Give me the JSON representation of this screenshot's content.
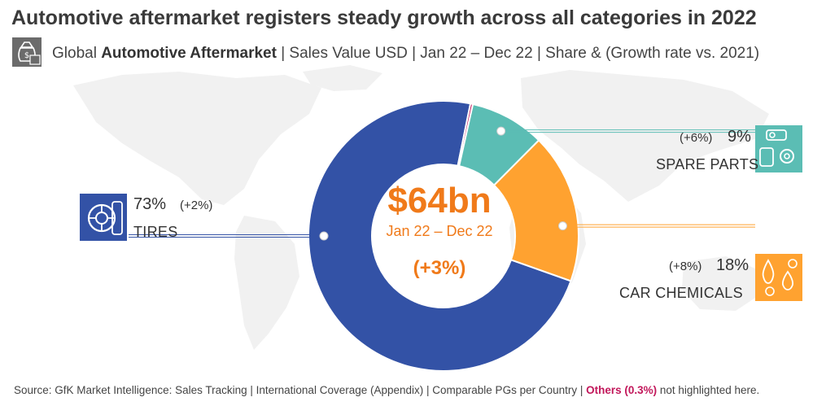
{
  "title": "Automotive aftermarket registers steady growth across all categories in 2022",
  "subtitle": {
    "prefix": "Global ",
    "bold": "Automotive Aftermarket",
    "suffix": " | Sales Value USD | Jan 22 – Dec 22 | Share & (Growth rate vs. 2021)"
  },
  "center": {
    "value": "$64bn",
    "period": "Jan 22 – Dec 22",
    "growth": "(+3%)"
  },
  "source": {
    "text": "Source: GfK Market Intelligence: Sales Tracking | International Coverage (Appendix) | Comparable PGs per Country | ",
    "others": "Others (0.3%)",
    "tail": " not highlighted here."
  },
  "colors": {
    "tires": "#3352a6",
    "spare_parts": "#5bbdb4",
    "car_chemicals": "#ffa230",
    "others": "#c2185b",
    "center_text": "#f07a1a"
  },
  "icons": {
    "subtitle": "money-bag-icon",
    "tires": "tire-icon",
    "spare_parts": "engine-parts-icon",
    "car_chemicals": "chemical-drops-icon"
  },
  "chart_data": {
    "type": "pie",
    "style": "donut",
    "categories": [
      "TIRES",
      "SPARE PARTS",
      "CAR CHEMICALS",
      "Others"
    ],
    "values": [
      73,
      9,
      18,
      0.3
    ],
    "labels": [
      "73%",
      "9%",
      "18%",
      ""
    ],
    "growth_labels": [
      "(+2%)",
      "(+6%)",
      "(+8%)",
      ""
    ],
    "unit": "%"
  }
}
